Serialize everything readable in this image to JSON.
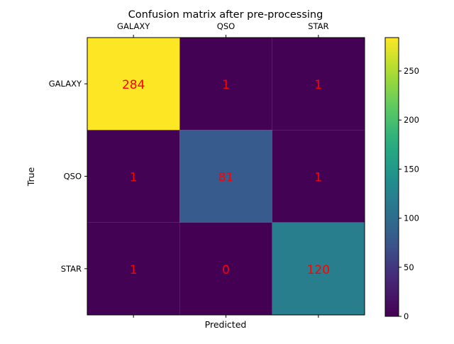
{
  "chart_data": {
    "type": "heatmap",
    "title": "Confusion matrix after pre-processing",
    "xlabel": "Predicted",
    "ylabel": "True",
    "x_categories": [
      "GALAXY",
      "QSO",
      "STAR"
    ],
    "y_categories": [
      "GALAXY",
      "QSO",
      "STAR"
    ],
    "values": [
      [
        284,
        1,
        1
      ],
      [
        1,
        81,
        1
      ],
      [
        1,
        0,
        120
      ]
    ],
    "colormap": "viridis",
    "value_range": [
      0,
      284
    ],
    "annotation_color": "#ff0000",
    "colorbar": {
      "ticks": [
        0,
        50,
        100,
        150,
        200,
        250
      ],
      "tick_labels": [
        "0",
        "50",
        "100",
        "150",
        "200",
        "250"
      ]
    },
    "x_tick_position": "top",
    "grid": false
  }
}
